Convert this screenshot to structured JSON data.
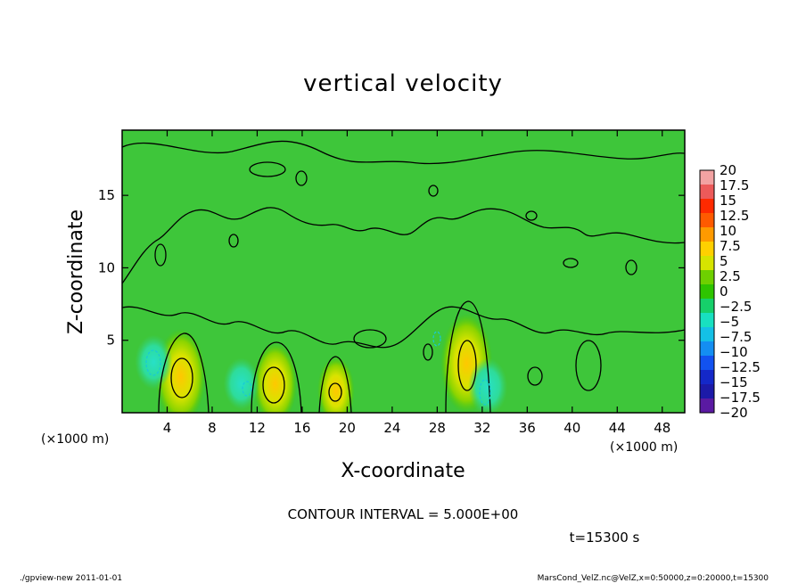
{
  "chart_data": {
    "type": "heatmap",
    "title": "vertical velocity",
    "xlabel": "X-coordinate",
    "ylabel": "Z-coordinate",
    "x_unit": "(×1000 m)",
    "y_unit": "(×1000 m)",
    "xlim": [
      0,
      50
    ],
    "ylim": [
      0,
      19.5
    ],
    "x_ticks": [
      4,
      8,
      12,
      16,
      20,
      24,
      28,
      32,
      36,
      40,
      44,
      48
    ],
    "y_ticks": [
      5,
      10,
      15
    ],
    "colorbar": {
      "labels": [
        "20",
        "17.5",
        "15",
        "12.5",
        "10",
        "7.5",
        "5",
        "2.5",
        "0",
        "-2.5",
        "-5",
        "-7.5",
        "-10",
        "-12.5",
        "-15",
        "-17.5",
        "-20"
      ],
      "colors": [
        "#f2a2a2",
        "#ec5a5a",
        "#ff2a00",
        "#ff5a00",
        "#ff9a00",
        "#ffd000",
        "#d6e400",
        "#6ed000",
        "#2ec400",
        "#16d06a",
        "#18e0c0",
        "#14c0e6",
        "#148ef2",
        "#1252f0",
        "#1428c8",
        "#1c1aa8",
        "#5a1aa2"
      ]
    },
    "contour_interval": "CONTOUR INTERVAL = 5.000E+00",
    "updraft_maxima": [
      {
        "x": 5.2,
        "z": 2.5,
        "w": 7.5
      },
      {
        "x": 13.6,
        "z": 2.0,
        "w": 6.0
      },
      {
        "x": 19.0,
        "z": 1.5,
        "w": 4.5
      },
      {
        "x": 30.6,
        "z": 3.4,
        "w": 8.0
      }
    ],
    "downdraft_minima": [
      {
        "x": 2.8,
        "z": 3.5,
        "w": -5.5
      },
      {
        "x": 10.6,
        "z": 2.0,
        "w": -5.0
      },
      {
        "x": 32.5,
        "z": 1.8,
        "w": -6.0
      }
    ],
    "time_label": "t=15300 s"
  },
  "footer": {
    "left": "./gpview-new   2011-01-01",
    "right": "MarsCond_VelZ.nc@VelZ,x=0:50000,z=0:20000,t=15300"
  }
}
